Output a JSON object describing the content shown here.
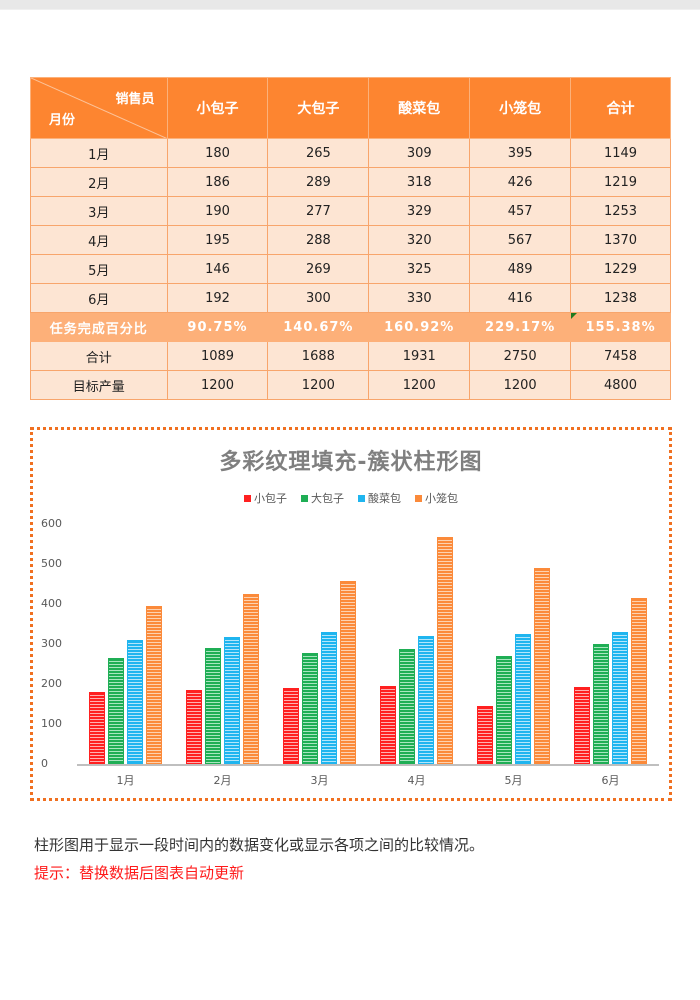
{
  "table": {
    "corner": {
      "top_label": "销售员",
      "bottom_label": "月份"
    },
    "headers": [
      "小包子",
      "大包子",
      "酸菜包",
      "小笼包",
      "合计"
    ],
    "rows": [
      {
        "label": "1月",
        "values": [
          "180",
          "265",
          "309",
          "395",
          "1149"
        ]
      },
      {
        "label": "2月",
        "values": [
          "186",
          "289",
          "318",
          "426",
          "1219"
        ]
      },
      {
        "label": "3月",
        "values": [
          "190",
          "277",
          "329",
          "457",
          "1253"
        ]
      },
      {
        "label": "4月",
        "values": [
          "195",
          "288",
          "320",
          "567",
          "1370"
        ]
      },
      {
        "label": "5月",
        "values": [
          "146",
          "269",
          "325",
          "489",
          "1229"
        ]
      },
      {
        "label": "6月",
        "values": [
          "192",
          "300",
          "330",
          "416",
          "1238"
        ]
      }
    ],
    "percent_row": {
      "label": "任务完成百分比",
      "values": [
        "90.75%",
        "140.67%",
        "160.92%",
        "229.17%",
        "155.38%"
      ]
    },
    "total_row": {
      "label": "合计",
      "values": [
        "1089",
        "1688",
        "1931",
        "2750",
        "7458"
      ]
    },
    "target_row": {
      "label": "目标产量",
      "values": [
        "1200",
        "1200",
        "1200",
        "1200",
        "4800"
      ]
    },
    "colors": {
      "header_bg": "#fd8530",
      "cell_bg": "#fde5d3",
      "percent_bg": "#fdb079"
    }
  },
  "chart_data": {
    "type": "bar",
    "title": "多彩纹理填充-簇状柱形图",
    "categories": [
      "1月",
      "2月",
      "3月",
      "4月",
      "5月",
      "6月"
    ],
    "series": [
      {
        "name": "小包子",
        "color": "#ff2020",
        "values": [
          180,
          186,
          190,
          195,
          146,
          192
        ]
      },
      {
        "name": "大包子",
        "color": "#1fae55",
        "values": [
          265,
          289,
          277,
          288,
          269,
          300
        ]
      },
      {
        "name": "酸菜包",
        "color": "#1fb5ef",
        "values": [
          309,
          318,
          329,
          320,
          325,
          330
        ]
      },
      {
        "name": "小笼包",
        "color": "#fb8a3a",
        "values": [
          395,
          426,
          457,
          567,
          489,
          416
        ]
      }
    ],
    "xlabel": "",
    "ylabel": "",
    "ylim": [
      0,
      600
    ],
    "yticks": [
      0,
      100,
      200,
      300,
      400,
      500,
      600
    ],
    "grid": false,
    "legend_position": "top",
    "fill": "horizontal-stripe texture"
  },
  "notes": {
    "description": "柱形图用于显示一段时间内的数据变化或显示各项之间的比较情况。",
    "tip": "提示：替换数据后图表自动更新"
  }
}
